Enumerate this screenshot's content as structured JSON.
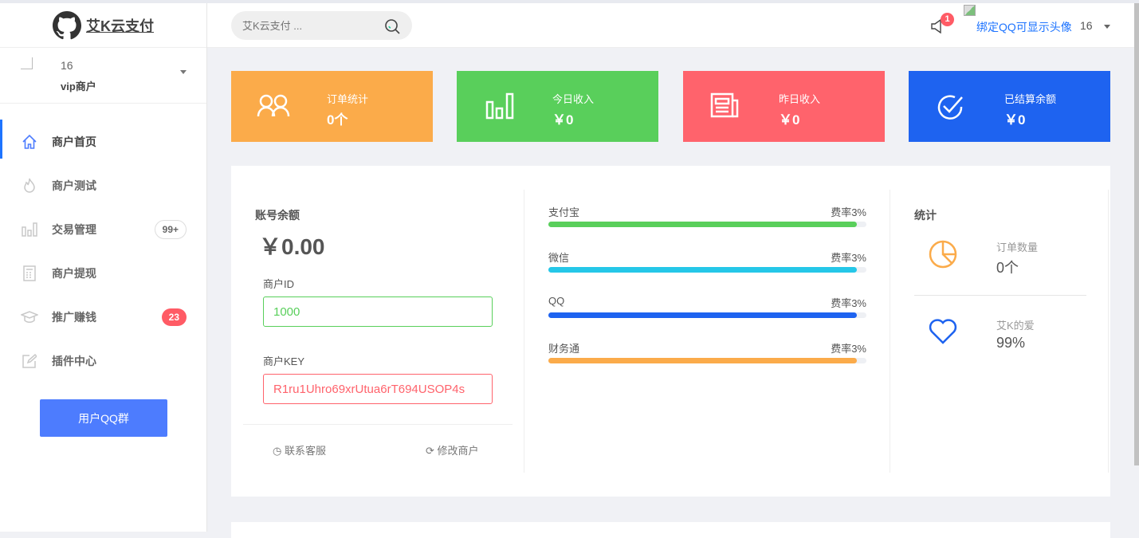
{
  "brand": {
    "name": "艾K云支付"
  },
  "user": {
    "name": "16",
    "role": "vip商户"
  },
  "sidebar": {
    "items": [
      {
        "label": "商户首页",
        "icon": "home-icon",
        "active": true
      },
      {
        "label": "商户测试",
        "icon": "fire-icon"
      },
      {
        "label": "交易管理",
        "icon": "bar-chart-icon",
        "badge": "99+"
      },
      {
        "label": "商户提现",
        "icon": "calculator-icon"
      },
      {
        "label": "推广赚钱",
        "icon": "graduation-cap-icon",
        "badge": "23"
      },
      {
        "label": "插件中心",
        "icon": "edit-icon"
      }
    ],
    "qq_button": "用户QQ群"
  },
  "header": {
    "search_placeholder": "艾K云支付 ...",
    "notification_count": "1",
    "bind_qq": "绑定QQ可显示头像",
    "username": "16"
  },
  "cards": [
    {
      "title": "订单统计",
      "value": "0个",
      "color": "#fbab4a",
      "icon": "users-icon"
    },
    {
      "title": "今日收入",
      "value": "￥0",
      "color": "#59cf5b",
      "icon": "bar-chart-icon"
    },
    {
      "title": "昨日收入",
      "value": "￥0",
      "color": "#ff636c",
      "icon": "newspaper-icon"
    },
    {
      "title": "已结算余额",
      "value": "￥0",
      "color": "#1e63f0",
      "icon": "check-circle-icon"
    }
  ],
  "account": {
    "title": "账号余额",
    "balance": "￥0.00",
    "id_label": "商户ID",
    "id_value": "1000",
    "key_label": "商户KEY",
    "key_value": "R1ru1Uhro69xrUtua6rT694USOP4s",
    "contact": "联系客服",
    "modify": "修改商户"
  },
  "channels": [
    {
      "name": "支付宝",
      "rate": "费率3%",
      "percent": 97,
      "color": "#59cf5b"
    },
    {
      "name": "微信",
      "rate": "费率3%",
      "percent": 97,
      "color": "#25c7e8"
    },
    {
      "name": "QQ",
      "rate": "费率3%",
      "percent": 97,
      "color": "#1e63f0"
    },
    {
      "name": "财务通",
      "rate": "费率3%",
      "percent": 97,
      "color": "#fbab4a"
    }
  ],
  "stats": {
    "title": "统计",
    "items": [
      {
        "label": "订单数量",
        "value": "0个",
        "icon": "pie-chart-icon",
        "color": "#fbab4a"
      },
      {
        "label": "艾K的爱",
        "value": "99%",
        "icon": "heart-icon",
        "color": "#1e63f0"
      }
    ]
  }
}
